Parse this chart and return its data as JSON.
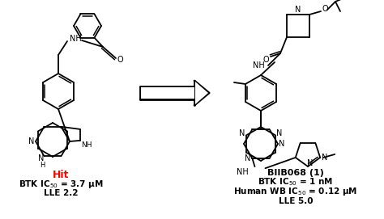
{
  "bg_color": "#ffffff",
  "hit_label": "Hit",
  "hit_label_color": "#ff0000",
  "hit_line2": "LLE 2.2",
  "biib_label": "BIIB068 (1)",
  "biib_label_color": "#000000",
  "biib_line3": "LLE 5.0",
  "text_color": "#000000",
  "figsize": [
    4.74,
    2.71
  ],
  "dpi": 100,
  "lw": 1.3
}
